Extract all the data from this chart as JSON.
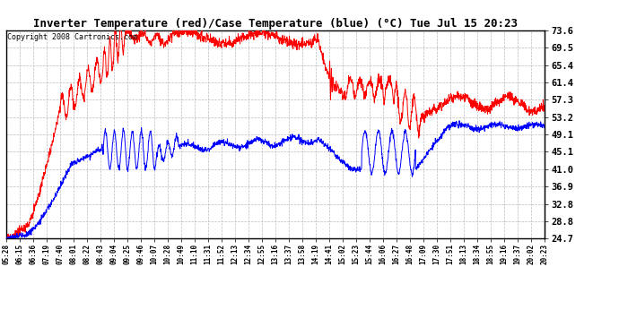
{
  "title": "Inverter Temperature (red)/Case Temperature (blue) (°C) Tue Jul 15 20:23",
  "copyright": "Copyright 2008 Cartronics.com",
  "y_ticks": [
    24.7,
    28.8,
    32.8,
    36.9,
    41.0,
    45.1,
    49.1,
    53.2,
    57.3,
    61.4,
    65.4,
    69.5,
    73.6
  ],
  "y_min": 24.7,
  "y_max": 73.6,
  "red_color": "#FF0000",
  "blue_color": "#0000FF",
  "bg_color": "#FFFFFF",
  "grid_color": "#BBBBBB",
  "x_labels": [
    "05:28",
    "06:15",
    "06:36",
    "07:19",
    "07:40",
    "08:01",
    "08:22",
    "08:43",
    "09:04",
    "09:25",
    "09:46",
    "10:07",
    "10:28",
    "10:49",
    "11:10",
    "11:31",
    "11:52",
    "12:13",
    "12:34",
    "12:55",
    "13:16",
    "13:37",
    "13:58",
    "14:19",
    "14:41",
    "15:02",
    "15:23",
    "15:44",
    "16:06",
    "16:27",
    "16:48",
    "17:09",
    "17:30",
    "17:51",
    "18:13",
    "18:34",
    "18:55",
    "19:16",
    "19:37",
    "20:02",
    "20:23"
  ]
}
